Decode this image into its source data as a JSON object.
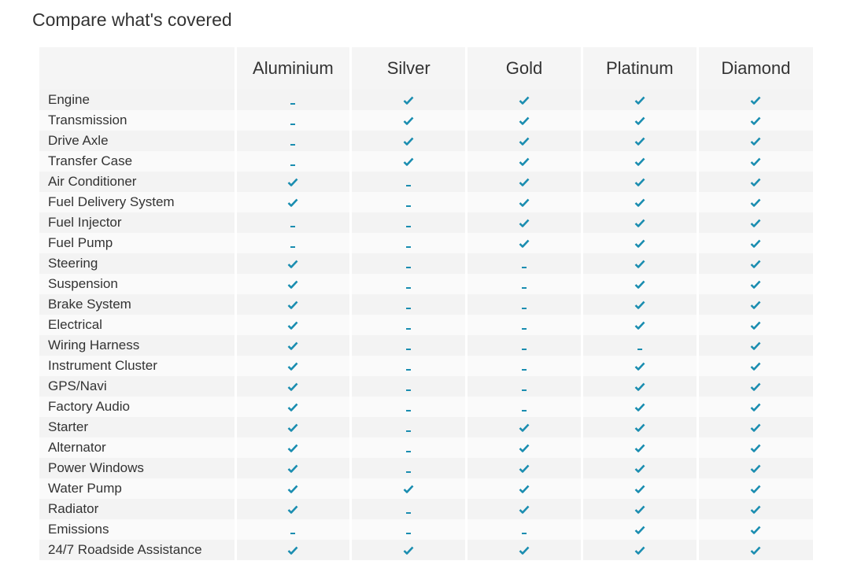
{
  "header": {
    "title": "Compare what's covered"
  },
  "table": {
    "columns": [
      "Aluminium",
      "Silver",
      "Gold",
      "Platinum",
      "Diamond"
    ],
    "rows": [
      {
        "label": "Engine",
        "covered": [
          false,
          true,
          true,
          true,
          true
        ]
      },
      {
        "label": "Transmission",
        "covered": [
          false,
          true,
          true,
          true,
          true
        ]
      },
      {
        "label": "Drive Axle",
        "covered": [
          false,
          true,
          true,
          true,
          true
        ]
      },
      {
        "label": "Transfer Case",
        "covered": [
          false,
          true,
          true,
          true,
          true
        ]
      },
      {
        "label": "Air Conditioner",
        "covered": [
          true,
          false,
          true,
          true,
          true
        ]
      },
      {
        "label": "Fuel Delivery System",
        "covered": [
          true,
          false,
          true,
          true,
          true
        ]
      },
      {
        "label": "Fuel Injector",
        "covered": [
          false,
          false,
          true,
          true,
          true
        ]
      },
      {
        "label": "Fuel Pump",
        "covered": [
          false,
          false,
          true,
          true,
          true
        ]
      },
      {
        "label": "Steering",
        "covered": [
          true,
          false,
          false,
          true,
          true
        ]
      },
      {
        "label": "Suspension",
        "covered": [
          true,
          false,
          false,
          true,
          true
        ]
      },
      {
        "label": "Brake System",
        "covered": [
          true,
          false,
          false,
          true,
          true
        ]
      },
      {
        "label": "Electrical",
        "covered": [
          true,
          false,
          false,
          true,
          true
        ]
      },
      {
        "label": "Wiring Harness",
        "covered": [
          true,
          false,
          false,
          false,
          true
        ]
      },
      {
        "label": "Instrument Cluster",
        "covered": [
          true,
          false,
          false,
          true,
          true
        ]
      },
      {
        "label": "GPS/Navi",
        "covered": [
          true,
          false,
          false,
          true,
          true
        ]
      },
      {
        "label": "Factory Audio",
        "covered": [
          true,
          false,
          false,
          true,
          true
        ]
      },
      {
        "label": "Starter",
        "covered": [
          true,
          false,
          true,
          true,
          true
        ]
      },
      {
        "label": "Alternator",
        "covered": [
          true,
          false,
          true,
          true,
          true
        ]
      },
      {
        "label": "Power Windows",
        "covered": [
          true,
          false,
          true,
          true,
          true
        ]
      },
      {
        "label": "Water Pump",
        "covered": [
          true,
          true,
          true,
          true,
          true
        ]
      },
      {
        "label": "Radiator",
        "covered": [
          true,
          false,
          true,
          true,
          true
        ]
      },
      {
        "label": "Emissions",
        "covered": [
          false,
          false,
          false,
          true,
          true
        ]
      },
      {
        "label": "24/7 Roadside Assistance",
        "covered": [
          true,
          true,
          true,
          true,
          true
        ]
      }
    ]
  }
}
